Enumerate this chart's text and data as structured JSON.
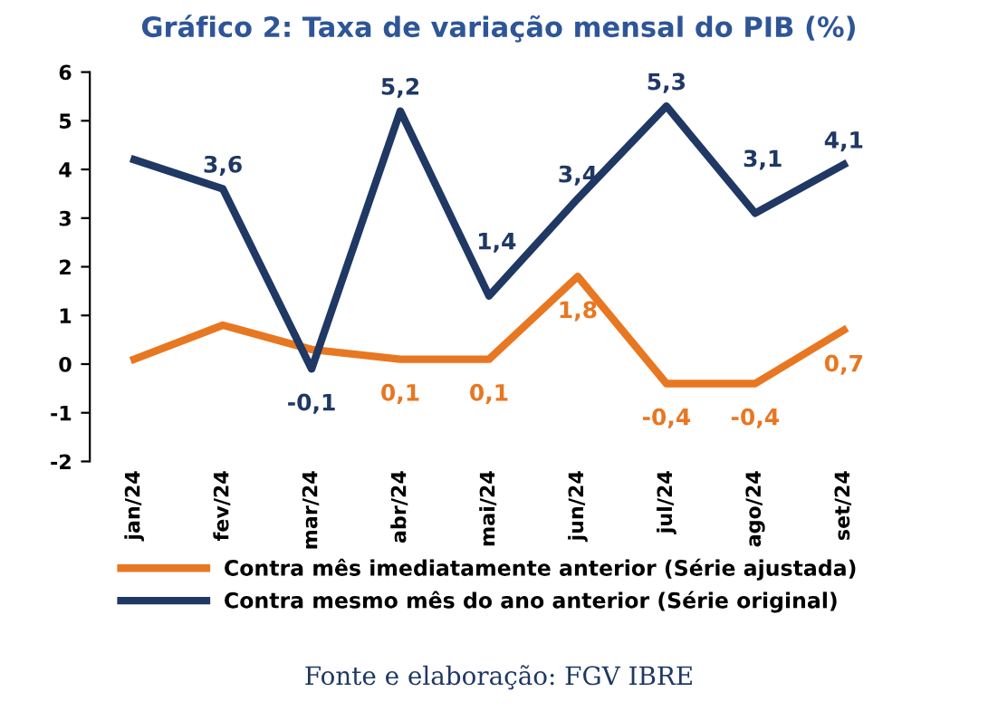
{
  "chart_data": {
    "type": "line",
    "title": "Gráfico 2: Taxa de variação mensal do PIB (%)",
    "categories": [
      "jan/24",
      "fev/24",
      "mar/24",
      "abr/24",
      "mai/24",
      "jun/24",
      "jul/24",
      "ago/24",
      "set/24"
    ],
    "series": [
      {
        "name": "Contra mês imediatamente anterior (Série ajustada)",
        "color": "#e87722",
        "values": [
          0.1,
          0.8,
          0.3,
          0.1,
          0.1,
          1.8,
          -0.4,
          -0.4,
          0.7
        ],
        "value_labels": [
          null,
          null,
          null,
          "0,1",
          "0,1",
          "1,8",
          "-0,4",
          "-0,4",
          "0,7"
        ]
      },
      {
        "name": "Contra mesmo mês do ano anterior (Série original)",
        "color": "#1f3864",
        "values": [
          4.2,
          3.6,
          -0.1,
          5.2,
          1.4,
          3.4,
          5.3,
          3.1,
          4.1
        ],
        "value_labels": [
          null,
          "3,6",
          "-0,1",
          "5,2",
          "1,4",
          "3,4",
          "5,3",
          "3,1",
          "4,1"
        ]
      }
    ],
    "ylim": [
      -2,
      6
    ],
    "yticks": [
      -2,
      -1,
      0,
      1,
      2,
      3,
      4,
      5,
      6
    ],
    "grid": false,
    "legend": "bottom",
    "marker": "none",
    "line_style": "solid",
    "annotations": [
      "Fonte e elaboração: FGV IBRE"
    ]
  }
}
